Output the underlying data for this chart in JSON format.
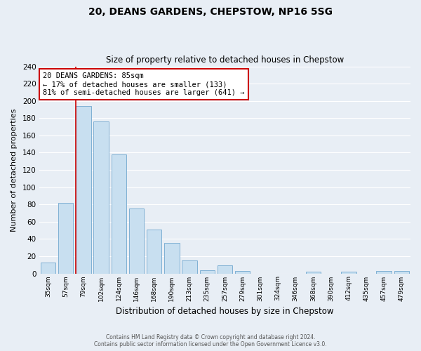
{
  "title": "20, DEANS GARDENS, CHEPSTOW, NP16 5SG",
  "subtitle": "Size of property relative to detached houses in Chepstow",
  "xlabel": "Distribution of detached houses by size in Chepstow",
  "ylabel": "Number of detached properties",
  "bar_color": "#c8dff0",
  "bar_edge_color": "#7fb0d4",
  "bg_color": "#e8eef5",
  "plot_bg_color": "#e8eef5",
  "grid_color": "#ffffff",
  "categories": [
    "35sqm",
    "57sqm",
    "79sqm",
    "102sqm",
    "124sqm",
    "146sqm",
    "168sqm",
    "190sqm",
    "213sqm",
    "235sqm",
    "257sqm",
    "279sqm",
    "301sqm",
    "324sqm",
    "346sqm",
    "368sqm",
    "390sqm",
    "412sqm",
    "435sqm",
    "457sqm",
    "479sqm"
  ],
  "values": [
    13,
    82,
    194,
    176,
    138,
    75,
    51,
    35,
    15,
    4,
    9,
    3,
    0,
    0,
    0,
    2,
    0,
    2,
    0,
    3,
    3
  ],
  "ylim": [
    0,
    240
  ],
  "yticks": [
    0,
    20,
    40,
    60,
    80,
    100,
    120,
    140,
    160,
    180,
    200,
    220,
    240
  ],
  "property_line_color": "#cc0000",
  "annotation_line1": "20 DEANS GARDENS: 85sqm",
  "annotation_line2": "← 17% of detached houses are smaller (133)",
  "annotation_line3": "81% of semi-detached houses are larger (641) →",
  "annotation_box_color": "white",
  "annotation_box_edge": "#cc0000",
  "footer_line1": "Contains HM Land Registry data © Crown copyright and database right 2024.",
  "footer_line2": "Contains public sector information licensed under the Open Government Licence v3.0."
}
